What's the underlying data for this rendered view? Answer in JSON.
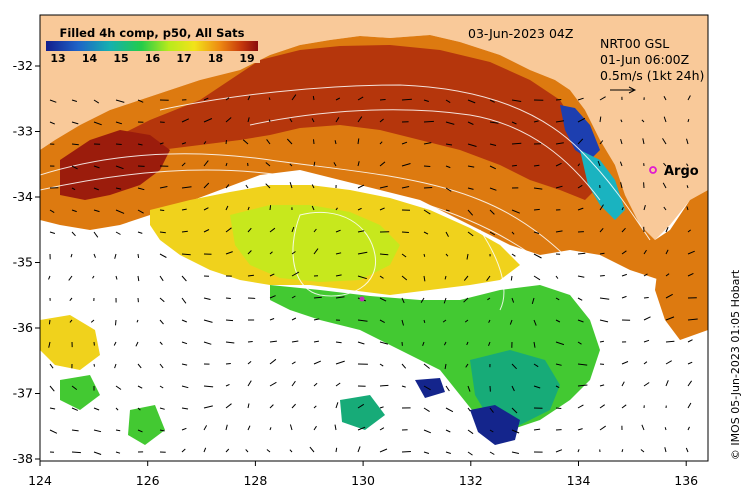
{
  "map": {
    "title": "Filled 4h comp, p50, All Sats",
    "date_label": "03-Jun-2023 04Z",
    "current_source": "NRT00 GSL",
    "current_time": "01-Jun 06:00Z",
    "vector_scale_label": "0.5m/s (1kt 24h)",
    "credit": "© IMOS 05-Jun-2023 01:05 Hobart",
    "argo_label": "Argo",
    "colorbar_ticks": [
      "13",
      "14",
      "15",
      "16",
      "17",
      "18",
      "19"
    ],
    "x_ticks": [
      "124",
      "126",
      "128",
      "130",
      "132",
      "134",
      "136"
    ],
    "y_ticks": [
      "-32",
      "-33",
      "-34",
      "-35",
      "-36",
      "-37",
      "-38"
    ],
    "colors": {
      "land": "#f9c999",
      "colorbar_low": "#131d8c",
      "colorbar_high": "#8a0c0c",
      "argo_marker": "#e01ad0",
      "contour": "#ffffff",
      "vector": "#000000"
    }
  }
}
